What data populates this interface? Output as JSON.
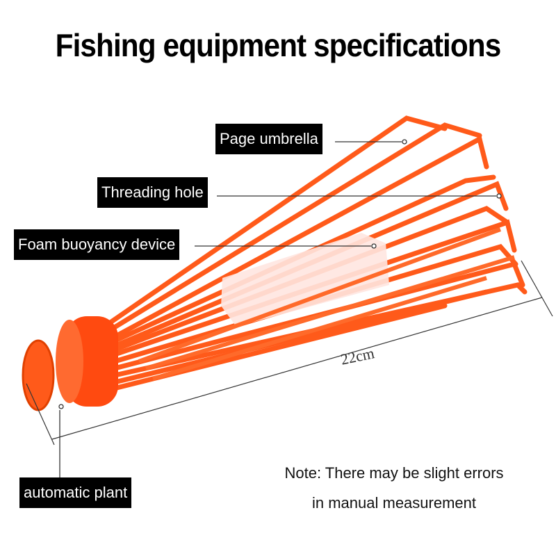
{
  "title": "Fishing equipment specifications",
  "labels": {
    "page_umbrella": "Page umbrella",
    "threading_hole": "Threading hole",
    "foam_buoyancy": "Foam buoyancy device",
    "automatic_plant": "automatic plant"
  },
  "dimension": "22cm",
  "note": {
    "line1": "Note: There may be slight errors",
    "line2": "in manual measurement"
  },
  "colors": {
    "product": "#ff5a1a",
    "foam": "#ffe6e0",
    "label_bg": "#000000"
  }
}
